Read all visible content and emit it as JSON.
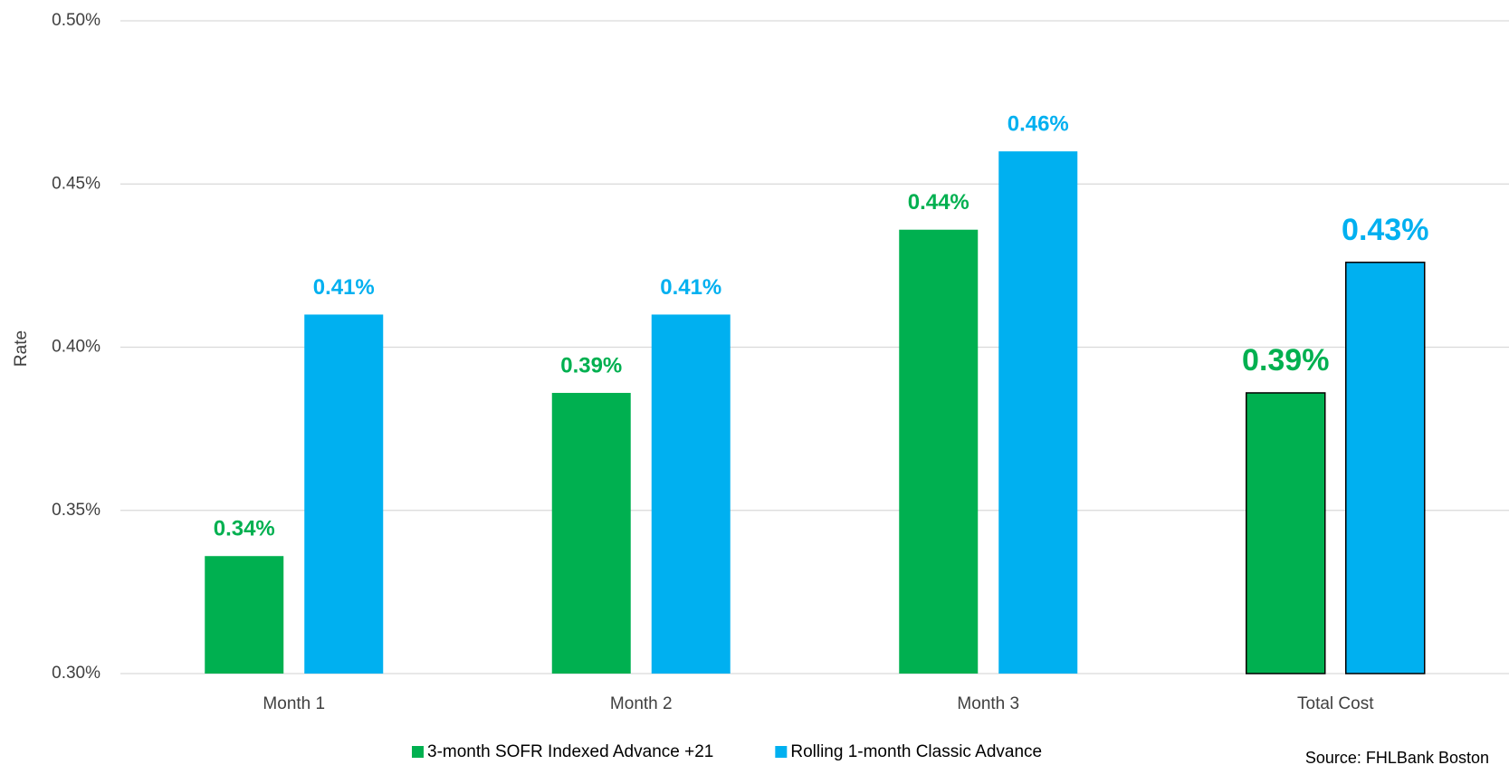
{
  "chart_data": {
    "type": "bar",
    "y_label": "Rate",
    "categories": [
      "Month 1",
      "Month 2",
      "Month 3",
      "Total Cost"
    ],
    "series": [
      {
        "name": "3-month SOFR Indexed Advance +21",
        "color": "#00b050",
        "values": [
          0.336,
          0.386,
          0.436,
          0.386
        ],
        "value_labels": [
          "0.34%",
          "0.39%",
          "0.44%",
          "0.39%"
        ]
      },
      {
        "name": "Rolling 1-month Classic Advance",
        "color": "#00b0f0",
        "values": [
          0.41,
          0.41,
          0.46,
          0.426
        ],
        "value_labels": [
          "0.41%",
          "0.41%",
          "0.46%",
          "0.43%"
        ]
      }
    ],
    "ylim": [
      0.3,
      0.5
    ],
    "yticks": [
      {
        "value": 0.3,
        "label": "0.30%"
      },
      {
        "value": 0.35,
        "label": "0.35%"
      },
      {
        "value": 0.4,
        "label": "0.40%"
      },
      {
        "value": 0.45,
        "label": "0.45%"
      },
      {
        "value": 0.5,
        "label": "0.50%"
      }
    ],
    "grid": true,
    "source": "Source: FHLBank Boston"
  }
}
